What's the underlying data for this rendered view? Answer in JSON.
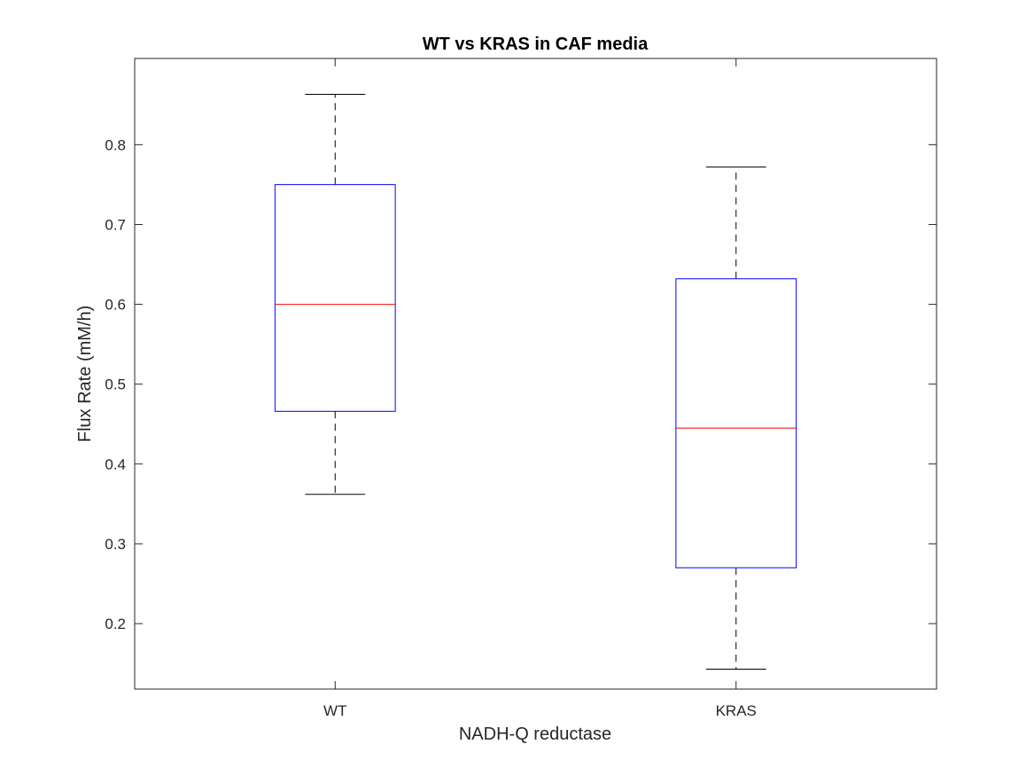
{
  "chart_data": {
    "type": "box",
    "title": "WT vs KRAS in CAF media",
    "xlabel": "NADH-Q reductase",
    "ylabel": "Flux Rate (mM/h)",
    "ylim": [
      0.118,
      0.908
    ],
    "yticks": [
      0.2,
      0.3,
      0.4,
      0.5,
      0.6,
      0.7,
      0.8
    ],
    "ytick_labels": [
      "0.2",
      "0.3",
      "0.4",
      "0.5",
      "0.6",
      "0.7",
      "0.8"
    ],
    "categories": [
      "WT",
      "KRAS"
    ],
    "boxes": [
      {
        "category": "WT",
        "whisker_low": 0.362,
        "q1": 0.466,
        "median": 0.6,
        "q3": 0.75,
        "whisker_high": 0.863
      },
      {
        "category": "KRAS",
        "whisker_low": 0.143,
        "q1": 0.27,
        "median": 0.445,
        "q3": 0.632,
        "whisker_high": 0.772
      }
    ],
    "grid": false,
    "legend": "none",
    "colors": {
      "box": "#0000ff",
      "median": "#ff0000",
      "whisker": "#000000",
      "axes": "#262626"
    }
  }
}
